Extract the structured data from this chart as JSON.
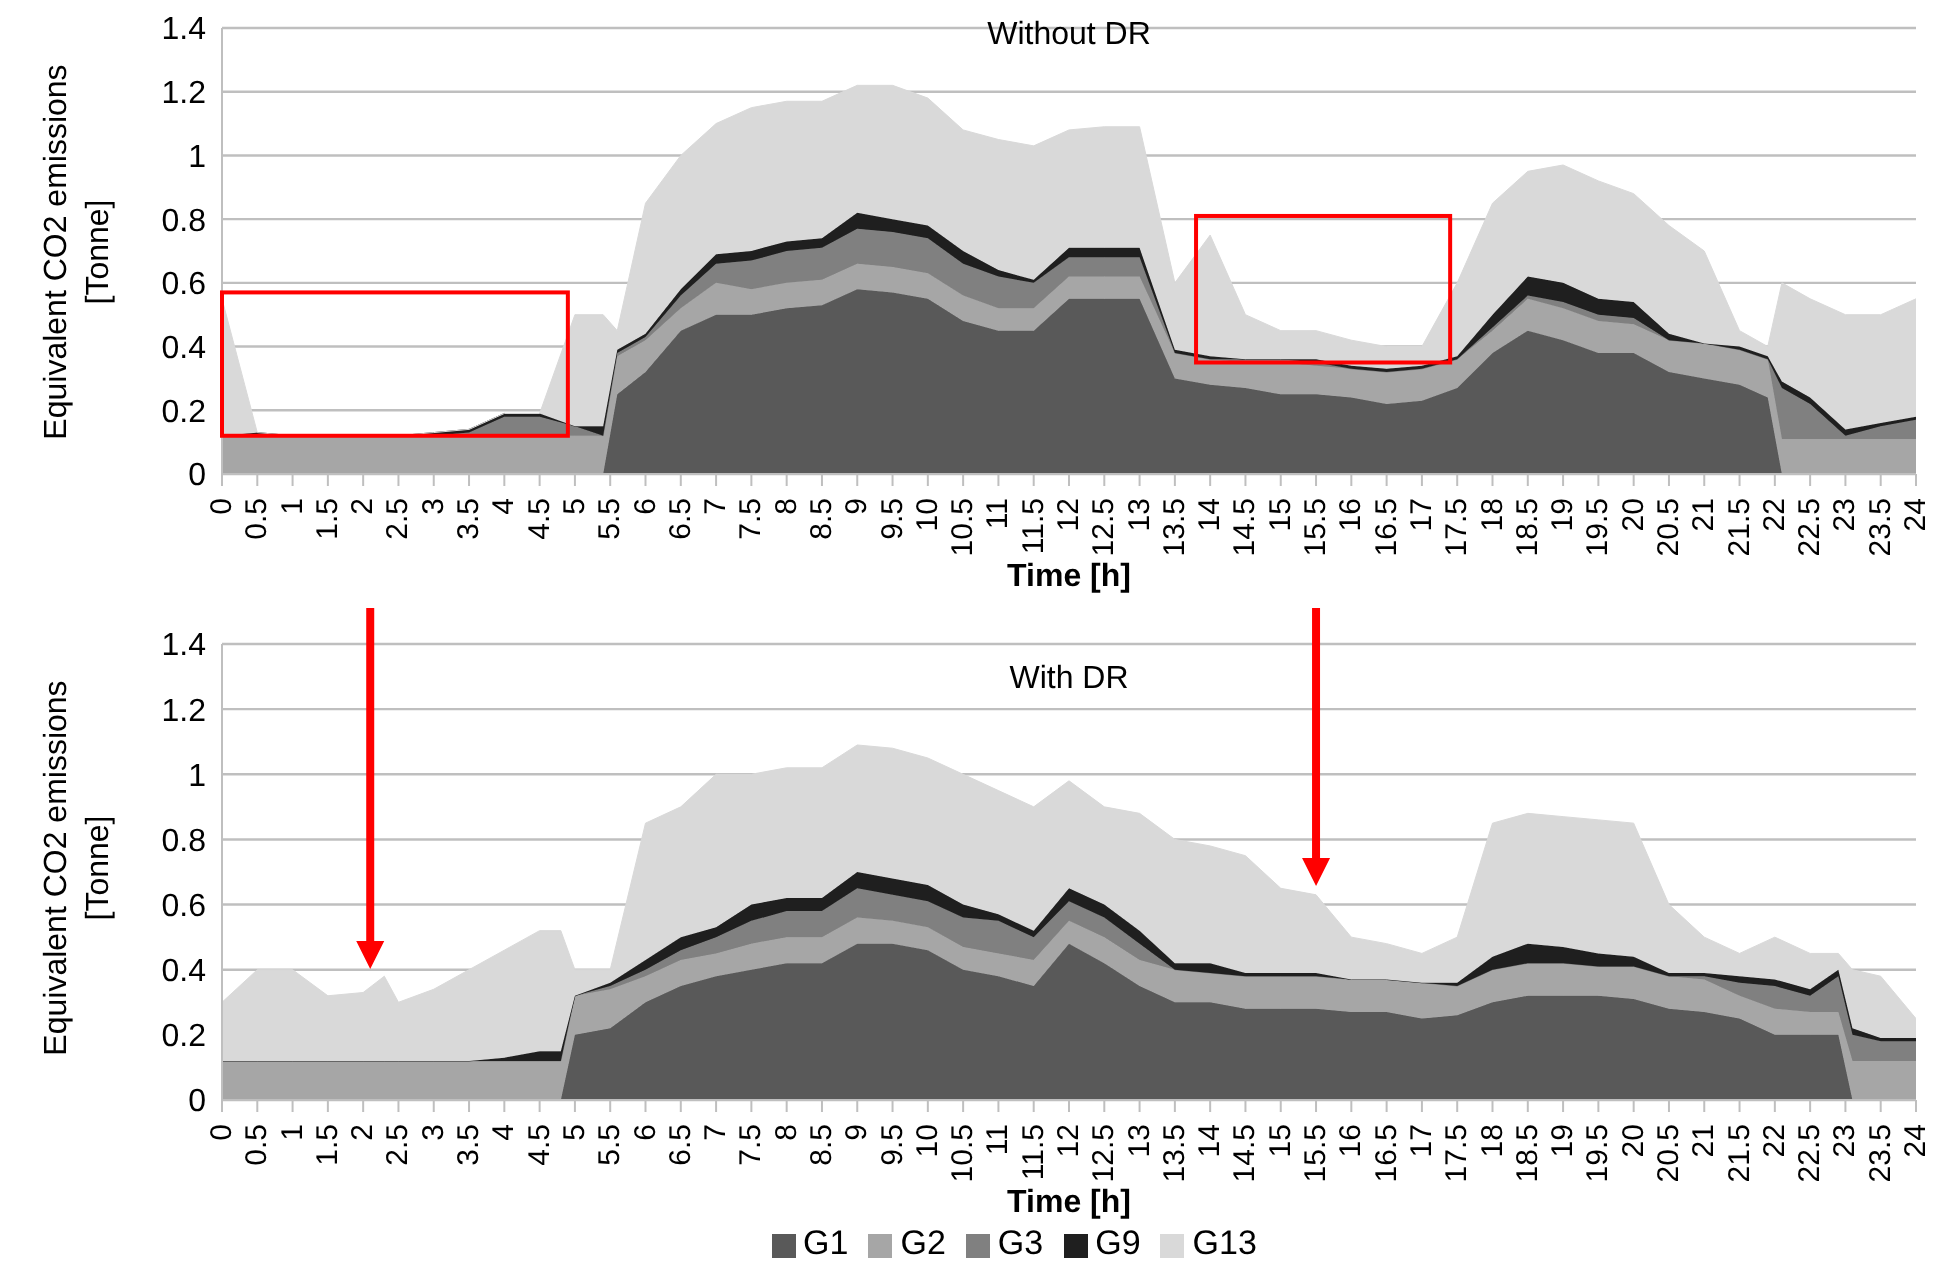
{
  "chart_data": [
    {
      "type": "area",
      "stacked": true,
      "title": "Without DR",
      "xlabel": "Time [h]",
      "ylabel": "Equivalent CO2 emissions [Tonne]",
      "x": [
        0,
        0.5,
        1,
        1.5,
        2,
        2.5,
        3,
        3.5,
        4,
        4.5,
        5,
        5.4,
        5.6,
        6,
        6.5,
        7,
        7.5,
        8,
        8.5,
        9,
        9.5,
        10,
        10.5,
        11,
        11.5,
        12,
        12.5,
        13,
        13.5,
        14,
        14.5,
        15,
        15.5,
        16,
        16.5,
        17,
        17.5,
        18,
        18.5,
        19,
        19.5,
        20,
        20.5,
        21,
        21.5,
        21.9,
        22.1,
        22.5,
        23,
        23.5,
        24
      ],
      "series": [
        {
          "color": "#595959",
          "values": [
            0,
            0,
            0,
            0,
            0,
            0,
            0,
            0,
            0,
            0,
            0,
            0,
            0.25,
            0.32,
            0.45,
            0.5,
            0.5,
            0.52,
            0.53,
            0.58,
            0.57,
            0.55,
            0.48,
            0.45,
            0.45,
            0.55,
            0.55,
            0.55,
            0.3,
            0.28,
            0.27,
            0.25,
            0.25,
            0.24,
            0.22,
            0.23,
            0.27,
            0.38,
            0.45,
            0.42,
            0.38,
            0.38,
            0.32,
            0.3,
            0.28,
            0.24,
            0,
            0,
            0,
            0,
            0
          ]
        },
        {
          "color": "#a6a6a6",
          "values": [
            0.12,
            0.12,
            0.12,
            0.12,
            0.12,
            0.12,
            0.12,
            0.12,
            0.12,
            0.12,
            0.12,
            0.12,
            0.12,
            0.1,
            0.07,
            0.1,
            0.08,
            0.08,
            0.08,
            0.08,
            0.08,
            0.08,
            0.08,
            0.07,
            0.07,
            0.07,
            0.07,
            0.07,
            0.08,
            0.08,
            0.08,
            0.1,
            0.09,
            0.09,
            0.1,
            0.1,
            0.09,
            0.07,
            0.1,
            0.1,
            0.1,
            0.09,
            0.1,
            0.11,
            0.11,
            0.12,
            0.11,
            0.11,
            0.11,
            0.11,
            0.11
          ]
        },
        {
          "color": "#808080",
          "values": [
            0,
            0,
            0,
            0,
            0,
            0,
            0,
            0.01,
            0.06,
            0.06,
            0.03,
            0,
            0.01,
            0.01,
            0.04,
            0.06,
            0.09,
            0.1,
            0.1,
            0.11,
            0.11,
            0.11,
            0.1,
            0.1,
            0.08,
            0.06,
            0.06,
            0.06,
            0,
            0,
            0.01,
            0.01,
            0.01,
            0,
            0,
            0,
            0,
            0.01,
            0.01,
            0.02,
            0.02,
            0.02,
            0,
            0,
            0,
            0,
            0.16,
            0.11,
            0.01,
            0.04,
            0.06
          ]
        },
        {
          "color": "#1f1f1f",
          "values": [
            0,
            0.01,
            0,
            0,
            0,
            0,
            0.01,
            0.01,
            0.01,
            0.01,
            0,
            0.03,
            0.01,
            0.01,
            0.02,
            0.03,
            0.03,
            0.03,
            0.03,
            0.05,
            0.04,
            0.04,
            0.04,
            0.02,
            0.01,
            0.03,
            0.03,
            0.03,
            0.01,
            0.01,
            0,
            0,
            0.01,
            0.01,
            0.01,
            0.01,
            0.01,
            0.04,
            0.06,
            0.06,
            0.05,
            0.05,
            0.02,
            0,
            0.01,
            0.01,
            0.02,
            0.02,
            0.02,
            0.01,
            0.01
          ]
        },
        {
          "color": "#d9d9d9",
          "values": [
            0.43,
            0,
            0,
            0,
            0,
            0,
            0,
            0,
            0,
            0,
            0.35,
            0.35,
            0.06,
            0.41,
            0.42,
            0.41,
            0.45,
            0.44,
            0.43,
            0.4,
            0.42,
            0.4,
            0.38,
            0.41,
            0.42,
            0.37,
            0.38,
            0.38,
            0.21,
            0.38,
            0.14,
            0.09,
            0.09,
            0.08,
            0.07,
            0.06,
            0.23,
            0.35,
            0.33,
            0.37,
            0.37,
            0.34,
            0.34,
            0.29,
            0.05,
            0.03,
            0.31,
            0.31,
            0.36,
            0.34,
            0.37
          ]
        }
      ],
      "xlim": [
        0,
        24
      ],
      "xticks": [
        0,
        0.5,
        1,
        1.5,
        2,
        2.5,
        3,
        3.5,
        4,
        4.5,
        5,
        5.5,
        6,
        6.5,
        7,
        7.5,
        8,
        8.5,
        9,
        9.5,
        10,
        10.5,
        11,
        11.5,
        12,
        12.5,
        13,
        13.5,
        14,
        14.5,
        15,
        15.5,
        16,
        16.5,
        17,
        17.5,
        18,
        18.5,
        19,
        19.5,
        20,
        20.5,
        21,
        21.5,
        22,
        22.5,
        23,
        23.5,
        24
      ],
      "ylim": [
        0,
        1.4
      ],
      "yticks": [
        0,
        0.2,
        0.4,
        0.6,
        0.8,
        1,
        1.2,
        1.4
      ],
      "grid": "y"
    },
    {
      "type": "area",
      "stacked": true,
      "title": "With DR",
      "xlabel": "Time [h]",
      "ylabel": "Equivalent CO2 emissions [Tonne]",
      "legend": "bottom",
      "x": [
        0,
        0.5,
        1,
        1.5,
        2,
        2.3,
        2.5,
        3,
        3.5,
        4,
        4.5,
        4.8,
        5,
        5.5,
        6,
        6.5,
        7,
        7.5,
        8,
        8.5,
        9,
        9.5,
        10,
        10.5,
        11,
        11.5,
        12,
        12.5,
        13,
        13.5,
        14,
        14.5,
        15,
        15.5,
        16,
        16.5,
        17,
        17.5,
        18,
        18.5,
        19,
        19.5,
        20,
        20.5,
        21,
        21.5,
        22,
        22.5,
        22.9,
        23.1,
        23.5,
        24
      ],
      "series": [
        {
          "name": "G1",
          "color": "#595959",
          "values": [
            0,
            0,
            0,
            0,
            0,
            0,
            0,
            0,
            0,
            0,
            0,
            0,
            0.2,
            0.22,
            0.3,
            0.35,
            0.38,
            0.4,
            0.42,
            0.42,
            0.48,
            0.48,
            0.46,
            0.4,
            0.38,
            0.35,
            0.48,
            0.42,
            0.35,
            0.3,
            0.3,
            0.28,
            0.28,
            0.28,
            0.27,
            0.27,
            0.25,
            0.26,
            0.3,
            0.32,
            0.32,
            0.32,
            0.31,
            0.28,
            0.27,
            0.25,
            0.2,
            0.2,
            0.2,
            0,
            0,
            0
          ]
        },
        {
          "name": "G2",
          "color": "#a6a6a6",
          "values": [
            0.12,
            0.12,
            0.12,
            0.12,
            0.12,
            0.12,
            0.12,
            0.12,
            0.12,
            0.12,
            0.12,
            0.12,
            0.12,
            0.12,
            0.08,
            0.08,
            0.07,
            0.08,
            0.08,
            0.08,
            0.08,
            0.07,
            0.07,
            0.07,
            0.07,
            0.08,
            0.07,
            0.08,
            0.08,
            0.1,
            0.09,
            0.1,
            0.1,
            0.1,
            0.1,
            0.1,
            0.11,
            0.09,
            0.1,
            0.1,
            0.1,
            0.09,
            0.1,
            0.1,
            0.1,
            0.07,
            0.08,
            0.07,
            0.07,
            0.12,
            0.12,
            0.12
          ]
        },
        {
          "name": "G3",
          "color": "#808080",
          "values": [
            0,
            0,
            0,
            0,
            0,
            0,
            0,
            0,
            0,
            0,
            0,
            0,
            0,
            0.01,
            0.02,
            0.03,
            0.05,
            0.07,
            0.08,
            0.08,
            0.09,
            0.08,
            0.08,
            0.09,
            0.1,
            0.07,
            0.06,
            0.06,
            0.05,
            0,
            0,
            0,
            0,
            0,
            0,
            0,
            0,
            0,
            0,
            0,
            0,
            0,
            0,
            0,
            0.01,
            0.04,
            0.07,
            0.05,
            0.11,
            0.08,
            0.06,
            0.06
          ]
        },
        {
          "name": "G9",
          "color": "#1f1f1f",
          "values": [
            0,
            0,
            0,
            0,
            0,
            0,
            0,
            0,
            0,
            0.01,
            0.03,
            0.03,
            0,
            0.01,
            0.03,
            0.04,
            0.03,
            0.05,
            0.04,
            0.04,
            0.05,
            0.05,
            0.05,
            0.04,
            0.02,
            0.02,
            0.04,
            0.04,
            0.04,
            0.02,
            0.03,
            0.01,
            0.01,
            0.01,
            0,
            0,
            0,
            0.01,
            0.04,
            0.06,
            0.05,
            0.04,
            0.03,
            0.01,
            0.01,
            0.02,
            0.02,
            0.02,
            0.02,
            0.02,
            0.01,
            0.01
          ]
        },
        {
          "name": "G13",
          "color": "#d9d9d9",
          "values": [
            0.18,
            0.28,
            0.28,
            0.2,
            0.21,
            0.26,
            0.18,
            0.22,
            0.28,
            0.33,
            0.37,
            0.37,
            0.08,
            0.04,
            0.42,
            0.4,
            0.47,
            0.4,
            0.4,
            0.4,
            0.39,
            0.4,
            0.39,
            0.4,
            0.38,
            0.38,
            0.33,
            0.3,
            0.36,
            0.38,
            0.36,
            0.36,
            0.26,
            0.24,
            0.13,
            0.11,
            0.09,
            0.14,
            0.41,
            0.4,
            0.4,
            0.41,
            0.41,
            0.21,
            0.11,
            0.07,
            0.13,
            0.11,
            0.05,
            0.18,
            0.19,
            0.06
          ]
        }
      ],
      "xlim": [
        0,
        24
      ],
      "xticks": [
        0,
        0.5,
        1,
        1.5,
        2,
        2.5,
        3,
        3.5,
        4,
        4.5,
        5,
        5.5,
        6,
        6.5,
        7,
        7.5,
        8,
        8.5,
        9,
        9.5,
        10,
        10.5,
        11,
        11.5,
        12,
        12.5,
        13,
        13.5,
        14,
        14.5,
        15,
        15.5,
        16,
        16.5,
        17,
        17.5,
        18,
        18.5,
        19,
        19.5,
        20,
        20.5,
        21,
        21.5,
        22,
        22.5,
        23,
        23.5,
        24
      ],
      "ylim": [
        0,
        1.4
      ],
      "yticks": [
        0,
        0.2,
        0.4,
        0.6,
        0.8,
        1,
        1.2,
        1.4
      ],
      "grid": "y"
    }
  ]
}
